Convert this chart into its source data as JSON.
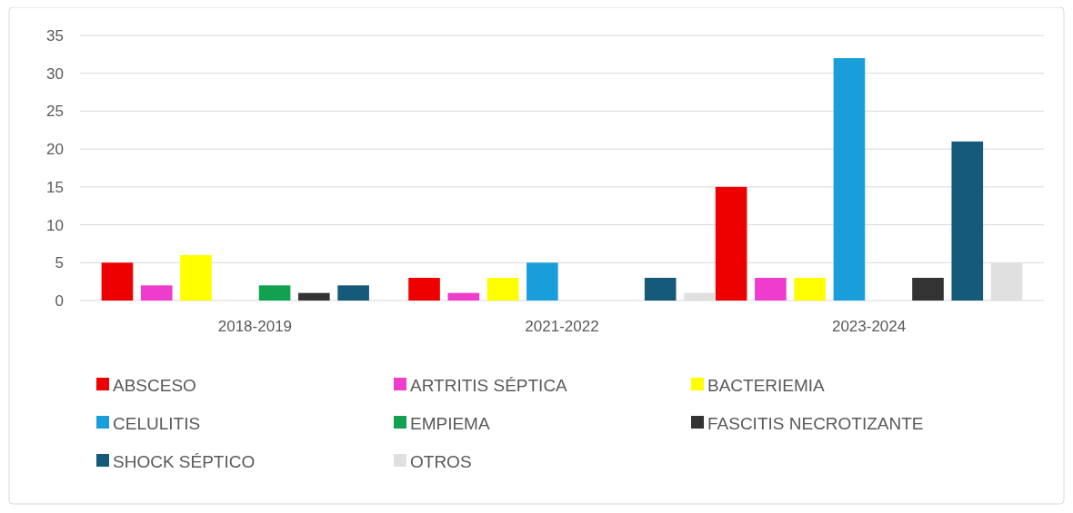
{
  "chart_data": {
    "type": "bar",
    "categories": [
      "2018-2019",
      "2021-2022",
      "2023-2024"
    ],
    "series": [
      {
        "name": "ABSCESO",
        "color": "#ee0000",
        "values": [
          5,
          3,
          15
        ]
      },
      {
        "name": "ARTRITIS SÉPTICA",
        "color": "#ee3ccc",
        "values": [
          2,
          1,
          3
        ]
      },
      {
        "name": "BACTERIEMIA",
        "color": "#ffff00",
        "values": [
          6,
          3,
          3
        ]
      },
      {
        "name": "CELULITIS",
        "color": "#1a9edb",
        "values": [
          0,
          5,
          32
        ]
      },
      {
        "name": "EMPIEMA",
        "color": "#12a150",
        "values": [
          2,
          0,
          0
        ]
      },
      {
        "name": "FASCITIS NECROTIZANTE",
        "color": "#333333",
        "values": [
          1,
          0,
          3
        ]
      },
      {
        "name": "SHOCK SÉPTICO",
        "color": "#165a7a",
        "values": [
          2,
          3,
          21
        ]
      },
      {
        "name": "OTROS",
        "color": "#e0e0e0",
        "values": [
          0,
          1,
          5
        ]
      }
    ],
    "ylim": [
      0,
      35
    ],
    "yticks": [
      0,
      5,
      10,
      15,
      20,
      25,
      30,
      35
    ],
    "grid": "y",
    "legend": "bottom"
  }
}
